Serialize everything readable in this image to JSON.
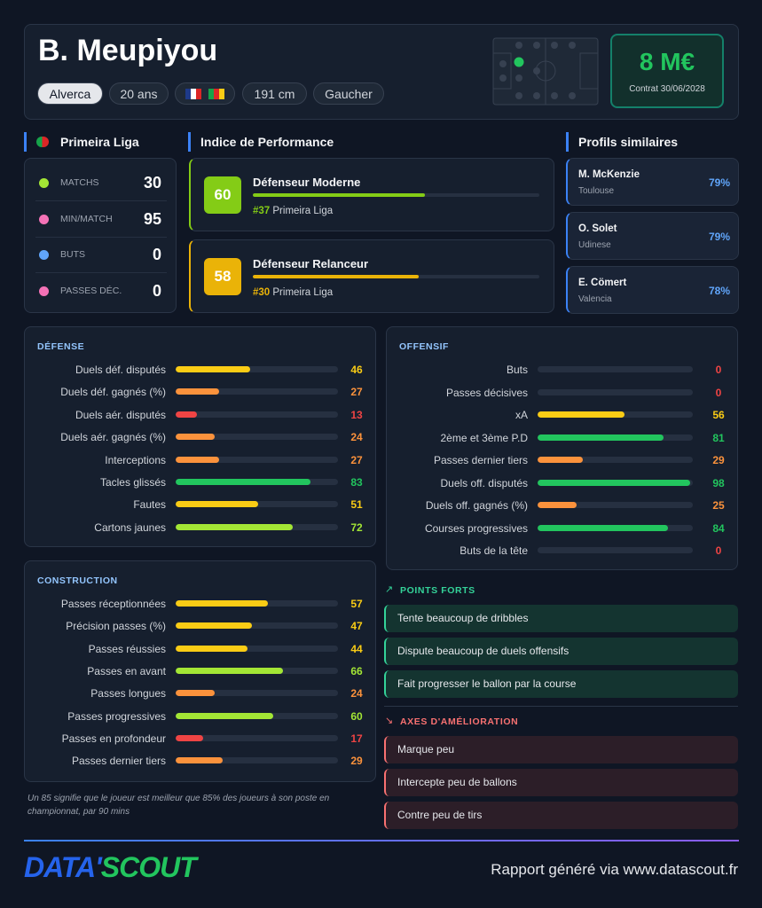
{
  "header": {
    "name": "B. Meupiyou",
    "tags": [
      "Alverca",
      "20 ans",
      "191 cm",
      "Gaucher"
    ],
    "market_value": "8 M€",
    "contract": "Contrat 30/06/2028"
  },
  "league": {
    "name": "Primeira Liga",
    "stats": [
      {
        "label": "MATCHS",
        "value": 30
      },
      {
        "label": "MIN/MATCH",
        "value": 95
      },
      {
        "label": "BUTS",
        "value": 0
      },
      {
        "label": "PASSES DÉC.",
        "value": 0
      }
    ]
  },
  "performance": {
    "title": "Indice de Performance",
    "profiles": [
      {
        "score": 60,
        "name": "Défenseur Moderne",
        "rank": "#37",
        "league": "Primeira Liga"
      },
      {
        "score": 58,
        "name": "Défenseur Relanceur",
        "rank": "#30",
        "league": "Primeira Liga"
      }
    ]
  },
  "similar": {
    "title": "Profils similaires",
    "players": [
      {
        "name": "M. McKenzie",
        "club": "Toulouse",
        "match": "79%"
      },
      {
        "name": "O. Solet",
        "club": "Udinese",
        "match": "79%"
      },
      {
        "name": "E. Cömert",
        "club": "Valencia",
        "match": "78%"
      }
    ]
  },
  "sections": [
    {
      "title": "DÉFENSE",
      "rows": [
        {
          "label": "Duels déf. disputés",
          "value": 46
        },
        {
          "label": "Duels déf. gagnés (%)",
          "value": 27
        },
        {
          "label": "Duels aér. disputés",
          "value": 13
        },
        {
          "label": "Duels aér. gagnés (%)",
          "value": 24
        },
        {
          "label": "Interceptions",
          "value": 27
        },
        {
          "label": "Tacles glissés",
          "value": 83
        },
        {
          "label": "Fautes",
          "value": 51
        },
        {
          "label": "Cartons jaunes",
          "value": 72
        }
      ]
    },
    {
      "title": "OFFENSIF",
      "rows": [
        {
          "label": "Buts",
          "value": 0
        },
        {
          "label": "Passes décisives",
          "value": 0
        },
        {
          "label": "xA",
          "value": 56
        },
        {
          "label": "2ème et 3ème P.D",
          "value": 81
        },
        {
          "label": "Passes dernier tiers",
          "value": 29
        },
        {
          "label": "Duels off. disputés",
          "value": 98
        },
        {
          "label": "Duels off. gagnés (%)",
          "value": 25
        },
        {
          "label": "Courses progressives",
          "value": 84
        },
        {
          "label": "Buts de la tête",
          "value": 0
        }
      ]
    },
    {
      "title": "CONSTRUCTION",
      "rows": [
        {
          "label": "Passes réceptionnées",
          "value": 57
        },
        {
          "label": "Précision passes (%)",
          "value": 47
        },
        {
          "label": "Passes réussies",
          "value": 44
        },
        {
          "label": "Passes en avant",
          "value": 66
        },
        {
          "label": "Passes longues",
          "value": 24
        },
        {
          "label": "Passes progressives",
          "value": 60
        },
        {
          "label": "Passes en profondeur",
          "value": 17
        },
        {
          "label": "Passes dernier tiers",
          "value": 29
        }
      ]
    }
  ],
  "strengths": {
    "title": "POINTS FORTS",
    "items": [
      "Tente beaucoup de dribbles",
      "Dispute beaucoup de duels offensifs",
      "Fait progresser le ballon par la course"
    ]
  },
  "improvements": {
    "title": "AXES D'AMÉLIORATION",
    "items": [
      "Marque peu",
      "Intercepte peu de ballons",
      "Contre peu de tirs"
    ]
  },
  "note": "Un 85 signifie que le joueur est meilleur que 85% des joueurs à son poste en championnat, par 90 mins",
  "footer": {
    "logo": [
      "DATA'",
      "SCOUT"
    ],
    "text": "Rapport généré via www.datascout.fr"
  }
}
